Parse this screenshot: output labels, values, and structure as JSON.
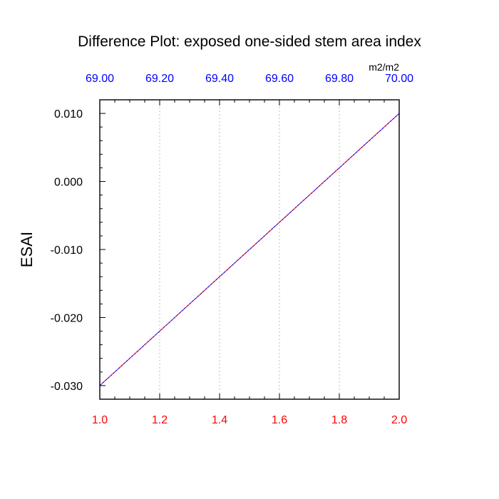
{
  "chart_data": {
    "type": "line",
    "title": "Difference Plot: exposed one-sided stem area index",
    "ylabel": "ESAI",
    "units_label": "m2/m2",
    "xlim": [
      1.0,
      2.0
    ],
    "ylim": [
      -0.032,
      0.012
    ],
    "x_ticks": [
      1.0,
      1.2,
      1.4,
      1.6,
      1.8,
      2.0
    ],
    "x_tick_labels": [
      "1.0",
      "1.2",
      "1.4",
      "1.6",
      "1.8",
      "2.0"
    ],
    "x_minor_step": 0.05,
    "top_axis": {
      "range": [
        69.0,
        70.0
      ],
      "ticks": [
        69.0,
        69.2,
        69.4,
        69.6,
        69.8,
        70.0
      ],
      "tick_labels": [
        "69.00",
        "69.20",
        "69.40",
        "69.60",
        "69.80",
        "70.00"
      ],
      "minor_step": 0.05
    },
    "y_ticks": [
      -0.03,
      -0.02,
      -0.01,
      0.0,
      0.01
    ],
    "y_tick_labels": [
      "-0.030",
      "-0.020",
      "-0.010",
      "0.000",
      "0.010"
    ],
    "y_minor_step": 0.002,
    "grid": "vertical dotted at major x ticks",
    "series": [
      {
        "x": [
          1.0,
          2.0
        ],
        "y": [
          -0.03,
          0.01
        ],
        "color": "#ff0000"
      },
      {
        "x": [
          1.0,
          2.0
        ],
        "y": [
          -0.03,
          0.01
        ],
        "color": "#0000ff",
        "dashed": true
      }
    ],
    "colors": {
      "bottom_tick_labels": "#ff0000",
      "top_tick_labels": "#0000ff",
      "left_tick_labels": "#000000"
    }
  }
}
